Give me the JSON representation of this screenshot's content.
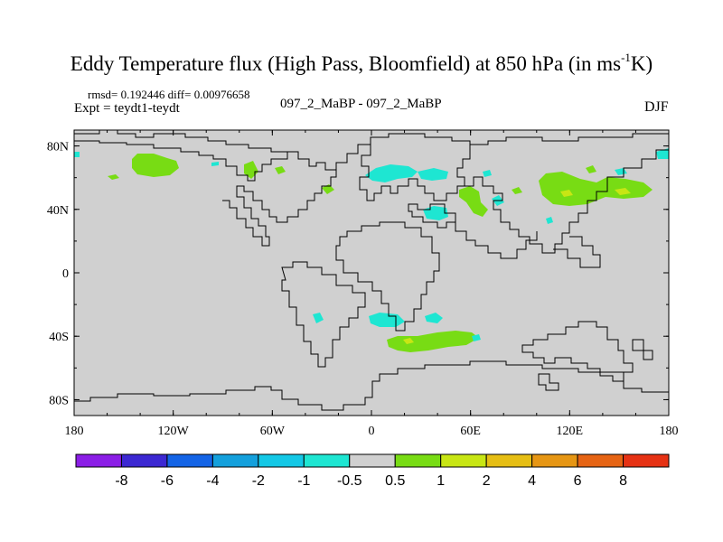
{
  "figure": {
    "title_main": "Eddy Temperature flux (High Pass, Bloomfield) at 850 hPa (in ms",
    "title_sup": "-1",
    "title_end": "K)",
    "stats_line": "rmsd= 0.192446 diff= 0.00976658",
    "expt_line": "Expt = teydt1-teydt",
    "center_label": "097_2_MaBP - 097_2_MaBP",
    "season": "DJF"
  },
  "chart_data": {
    "type": "heatmap",
    "projection": "cylindrical-equidistant",
    "lon_range": [
      -180,
      180
    ],
    "lat_range": [
      -90,
      90
    ],
    "x_ticks": [
      {
        "value": -180,
        "label": "180"
      },
      {
        "value": -120,
        "label": "120W"
      },
      {
        "value": -60,
        "label": "60W"
      },
      {
        "value": 0,
        "label": "0"
      },
      {
        "value": 60,
        "label": "60E"
      },
      {
        "value": 120,
        "label": "120E"
      },
      {
        "value": 180,
        "label": "180"
      }
    ],
    "y_ticks": [
      {
        "value": 80,
        "label": "80N"
      },
      {
        "value": 40,
        "label": "40N"
      },
      {
        "value": 0,
        "label": "0"
      },
      {
        "value": -40,
        "label": "40S"
      },
      {
        "value": -80,
        "label": "80S"
      }
    ],
    "colorbar": {
      "levels": [
        "-8",
        "-6",
        "-4",
        "-2",
        "-1",
        "-0.5",
        "0.5",
        "1",
        "2",
        "4",
        "6",
        "8"
      ],
      "colors": [
        "#8b1ee6",
        "#3c28d2",
        "#1464e6",
        "#14a0dc",
        "#14c8e6",
        "#1ee6d2",
        "#d0d0d0",
        "#78dc14",
        "#c8e614",
        "#e6be14",
        "#e69614",
        "#e66414",
        "#e63214"
      ]
    },
    "background_value_color": "#d0d0d0",
    "positive_regions": [
      {
        "name": "north-pacific-west",
        "lon": -150,
        "lat": 62,
        "level": "0.5 to 1"
      },
      {
        "name": "east-asia",
        "lon": 120,
        "lat": 48,
        "level": "0.5 to 2"
      },
      {
        "name": "caspian",
        "lon": 60,
        "lat": 45,
        "level": "0.5 to 2"
      },
      {
        "name": "south-atlantic-indian",
        "lon": 30,
        "lat": -45,
        "level": "0.5 to 1"
      },
      {
        "name": "greenland-east",
        "lon": -40,
        "lat": 48,
        "level": "0.5 to 1"
      }
    ],
    "negative_regions": [
      {
        "name": "north-atlantic-east",
        "lon": 15,
        "lat": 58,
        "level": "-1 to -0.5"
      },
      {
        "name": "mediterranean",
        "lon": 40,
        "lat": 35,
        "level": "-1 to -0.5"
      },
      {
        "name": "south-atlantic",
        "lon": 10,
        "lat": -32,
        "level": "-1 to -0.5"
      },
      {
        "name": "south-african-west",
        "lon": 38,
        "lat": -30,
        "level": "-1 to -0.5"
      },
      {
        "name": "far-east-coast",
        "lon": 168,
        "lat": 67,
        "level": "-1 to -0.5"
      }
    ]
  }
}
